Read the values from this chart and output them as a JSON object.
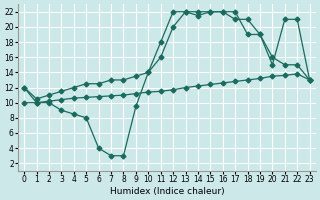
{
  "bg_color": "#cce8e8",
  "grid_color": "#ffffff",
  "line_color": "#1a6b5e",
  "line_width": 0.9,
  "marker": "D",
  "marker_size": 2.5,
  "xlabel": "Humidex (Indice chaleur)",
  "xlabel_fontsize": 6.5,
  "tick_fontsize": 5.5,
  "xlim": [
    -0.5,
    23.5
  ],
  "ylim": [
    1,
    23
  ],
  "xticks": [
    0,
    1,
    2,
    3,
    4,
    5,
    6,
    7,
    8,
    9,
    10,
    11,
    12,
    13,
    14,
    15,
    16,
    17,
    18,
    19,
    20,
    21,
    22,
    23
  ],
  "yticks": [
    2,
    4,
    6,
    8,
    10,
    12,
    14,
    16,
    18,
    20,
    22
  ],
  "series1_x": [
    0,
    1,
    2,
    3,
    4,
    5,
    6,
    7,
    8,
    9,
    10,
    11,
    12,
    13,
    14,
    15,
    16,
    17,
    18,
    19,
    20,
    21,
    22,
    23
  ],
  "series1_y": [
    12,
    10,
    10,
    9,
    8.5,
    8,
    4,
    3,
    3,
    9.5,
    14,
    18,
    22,
    22,
    21.5,
    22,
    22,
    21,
    21,
    19,
    15,
    21,
    21,
    13
  ],
  "series2_x": [
    0,
    1,
    2,
    3,
    4,
    5,
    6,
    7,
    8,
    9,
    10,
    11,
    12,
    13,
    14,
    15,
    16,
    17,
    18,
    19,
    20,
    21,
    22,
    23
  ],
  "series2_y": [
    10,
    10.0,
    10.2,
    10.4,
    10.6,
    10.7,
    10.8,
    10.9,
    11.0,
    11.2,
    11.4,
    11.5,
    11.7,
    12.0,
    12.2,
    12.4,
    12.6,
    12.8,
    13.0,
    13.2,
    13.5,
    13.6,
    13.8,
    13.0
  ],
  "series3_x": [
    0,
    1,
    2,
    3,
    4,
    5,
    6,
    7,
    8,
    9,
    10,
    11,
    12,
    13,
    14,
    15,
    16,
    17,
    18,
    19,
    20,
    21,
    22,
    23
  ],
  "series3_y": [
    12,
    10.5,
    11,
    11.5,
    12,
    12.5,
    12.5,
    13,
    13,
    13.5,
    14,
    16,
    20,
    22,
    22,
    22,
    22,
    22,
    19,
    19,
    16,
    15,
    15,
    13
  ]
}
